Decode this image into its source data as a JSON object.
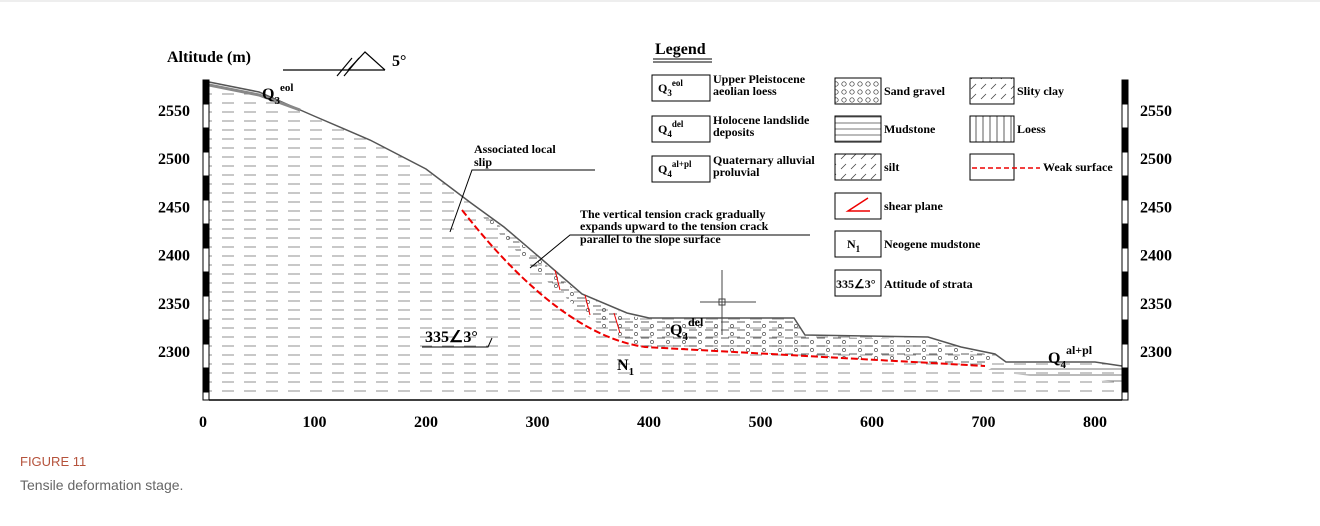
{
  "figure": {
    "y_axis_label": "Altitude (m)",
    "dip_label": "5°",
    "y_ticks_left": [
      2550,
      2500,
      2450,
      2400,
      2350,
      2300
    ],
    "y_ticks_right": [
      2550,
      2500,
      2450,
      2400,
      2350,
      2300
    ],
    "x_ticks": [
      0,
      100,
      200,
      300,
      400,
      500,
      600,
      700,
      800
    ],
    "legend": {
      "title": "Legend",
      "formation_items": [
        {
          "base": "Q",
          "sub": "3",
          "sup": "eol",
          "lines": [
            "Upper Pleistocene",
            "aeolian loess"
          ]
        },
        {
          "base": "Q",
          "sub": "4",
          "sup": "del",
          "lines": [
            "Holocene landslide",
            "deposits"
          ]
        },
        {
          "base": "Q",
          "sub": "4",
          "sup": "al+pl",
          "lines": [
            "Quaternary alluvial",
            "proluvial"
          ]
        }
      ],
      "lithology_items": [
        "Sand gravel",
        "Mudstone",
        "silt",
        "shear plane"
      ],
      "neogene": {
        "base": "N",
        "sub": "1",
        "label": "Neogene mudstone"
      },
      "strata": {
        "symbol": "335∠3°",
        "label": "Attitude of strata"
      },
      "other_items": [
        "Slity clay",
        "Loess",
        "Weak surface"
      ]
    },
    "annotations": {
      "q3_eol": {
        "base": "Q",
        "sub": "3",
        "sup": "eol"
      },
      "local_slip": [
        "Associated local",
        "slip"
      ],
      "tension_crack": [
        "The vertical tension crack gradually",
        "expands upward to the tension crack",
        "parallel to the slope surface"
      ],
      "q4_del": {
        "base": "Q",
        "sub": "4",
        "sup": "del"
      },
      "n1": {
        "base": "N",
        "sub": "1"
      },
      "strata": "335∠3°",
      "q4_alpl": {
        "base": "Q",
        "sub": "4",
        "sup": "al+pl"
      }
    },
    "caption": {
      "label": "FIGURE 11",
      "text": "Tensile deformation stage."
    }
  }
}
